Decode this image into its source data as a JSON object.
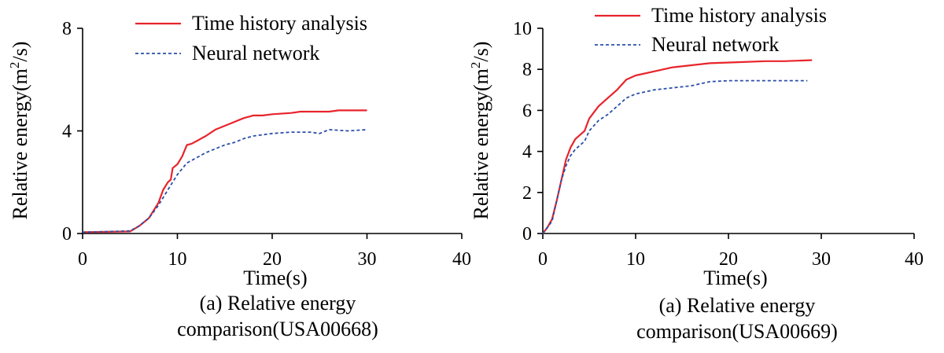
{
  "chart_data": [
    {
      "type": "line",
      "caption": [
        "(a) Relative energy",
        "comparison(USA00668)"
      ],
      "xlabel": "Time(s)",
      "ylabel": "Relative energy(m",
      "ylabel_sup": "2",
      "ylabel_tail": "/s)",
      "xlim": [
        0,
        40
      ],
      "ylim": [
        0,
        8
      ],
      "xticks": [
        0,
        10,
        20,
        30,
        40
      ],
      "yticks": [
        0,
        4,
        8
      ],
      "grid": false,
      "legend_position": "top",
      "series": [
        {
          "name": "Time history analysis",
          "color": "#e8242b",
          "style": "solid",
          "x": [
            0,
            5,
            6,
            7,
            7.5,
            8,
            8.5,
            9,
            9.3,
            9.5,
            10,
            10.5,
            11,
            11.5,
            12,
            13,
            14,
            15,
            16,
            17,
            18,
            19,
            20,
            22,
            23,
            24,
            25,
            26,
            27,
            28,
            30
          ],
          "y": [
            0.05,
            0.08,
            0.3,
            0.6,
            0.9,
            1.2,
            1.7,
            2.0,
            2.1,
            2.55,
            2.7,
            3.0,
            3.45,
            3.5,
            3.6,
            3.8,
            4.05,
            4.2,
            4.35,
            4.5,
            4.6,
            4.6,
            4.65,
            4.7,
            4.75,
            4.75,
            4.75,
            4.75,
            4.8,
            4.8,
            4.8
          ]
        },
        {
          "name": "Neural network",
          "color": "#2b4fa8",
          "style": "dashed",
          "x": [
            0,
            5,
            6,
            7,
            7.5,
            8,
            9,
            10,
            11,
            12,
            13,
            14,
            15,
            16,
            17,
            18,
            20,
            22,
            24,
            25,
            26,
            28,
            30
          ],
          "y": [
            0.05,
            0.1,
            0.3,
            0.6,
            0.85,
            1.1,
            1.7,
            2.3,
            2.75,
            2.95,
            3.15,
            3.3,
            3.45,
            3.55,
            3.7,
            3.8,
            3.9,
            3.95,
            3.95,
            3.9,
            4.05,
            4.0,
            4.05
          ]
        }
      ]
    },
    {
      "type": "line",
      "caption": [
        "(a) Relative energy",
        "comparison(USA00669)"
      ],
      "xlabel": "Time(s)",
      "ylabel": "Relative energy(m",
      "ylabel_sup": "2",
      "ylabel_tail": "/s)",
      "xlim": [
        0,
        40
      ],
      "ylim": [
        0,
        10
      ],
      "xticks": [
        0,
        10,
        20,
        30,
        40
      ],
      "yticks": [
        0,
        2,
        4,
        6,
        8,
        10
      ],
      "grid": false,
      "legend_position": "top",
      "series": [
        {
          "name": "Time history analysis",
          "color": "#e8242b",
          "style": "solid",
          "x": [
            0,
            0.5,
            1,
            1.5,
            2,
            2.5,
            3,
            3.5,
            4,
            4.5,
            5,
            6,
            7,
            8,
            9,
            10,
            12,
            14,
            16,
            18,
            21,
            24,
            26,
            29
          ],
          "y": [
            0,
            0.3,
            0.7,
            1.6,
            2.6,
            3.6,
            4.2,
            4.6,
            4.8,
            5.0,
            5.6,
            6.2,
            6.6,
            7.0,
            7.5,
            7.7,
            7.9,
            8.1,
            8.2,
            8.3,
            8.35,
            8.4,
            8.4,
            8.45
          ]
        },
        {
          "name": "Neural network",
          "color": "#2b4fa8",
          "style": "dashed",
          "x": [
            0,
            0.5,
            1,
            1.5,
            2,
            2.5,
            3,
            3.5,
            4,
            4.5,
            5,
            6,
            7,
            8,
            9,
            10,
            12,
            14,
            16,
            18,
            20,
            22,
            24,
            26,
            28.5
          ],
          "y": [
            0,
            0.3,
            0.6,
            1.6,
            2.6,
            3.3,
            3.8,
            4.1,
            4.3,
            4.5,
            5.0,
            5.5,
            5.8,
            6.2,
            6.6,
            6.8,
            7.0,
            7.1,
            7.2,
            7.4,
            7.45,
            7.45,
            7.45,
            7.45,
            7.45
          ]
        }
      ]
    }
  ]
}
